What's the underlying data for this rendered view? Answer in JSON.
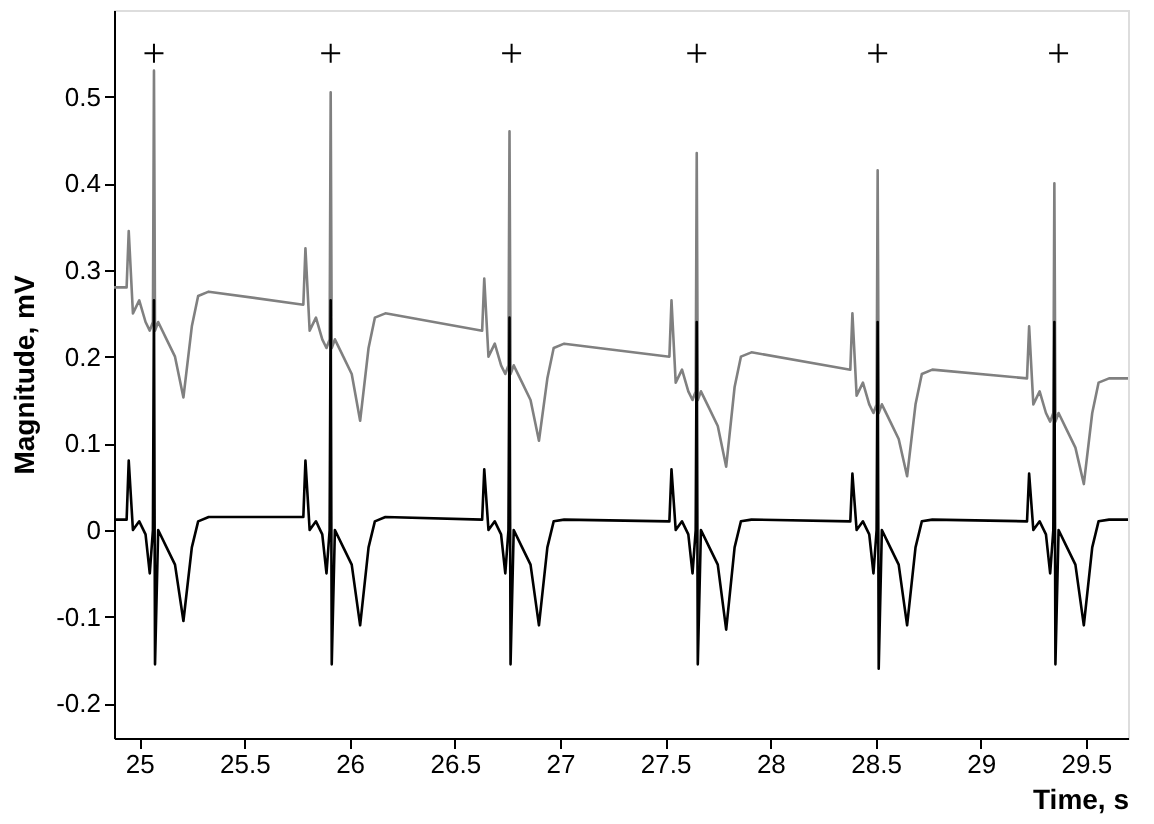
{
  "chart_data": {
    "type": "line",
    "xlabel": "Time, s",
    "ylabel": "Magnitude, mV",
    "xlim": [
      24.88,
      29.7
    ],
    "xticks": [
      25,
      25.5,
      26,
      26.5,
      27,
      27.5,
      28,
      28.5,
      29,
      29.5
    ],
    "ylim": [
      -0.24,
      0.6
    ],
    "yticks": [
      -0.2,
      -0.1,
      0,
      0.1,
      0.2,
      0.3,
      0.4,
      0.5
    ],
    "grid": false,
    "line_style": "solid",
    "series": [
      {
        "color": "#808080",
        "marker": "none",
        "x": [
          24.88,
          24.94,
          24.95,
          24.97,
          25.0,
          25.03,
          25.05,
          25.065,
          25.07,
          25.075,
          25.09,
          25.13,
          25.17,
          25.21,
          25.25,
          25.28,
          25.33,
          25.78,
          25.79,
          25.81,
          25.84,
          25.87,
          25.89,
          25.905,
          25.91,
          25.915,
          25.93,
          25.97,
          26.01,
          26.05,
          26.09,
          26.12,
          26.17,
          26.63,
          26.64,
          26.66,
          26.69,
          26.72,
          26.74,
          26.755,
          26.76,
          26.765,
          26.78,
          26.82,
          26.86,
          26.9,
          26.94,
          26.97,
          27.02,
          27.52,
          27.53,
          27.55,
          27.58,
          27.61,
          27.63,
          27.645,
          27.65,
          27.655,
          27.67,
          27.71,
          27.75,
          27.79,
          27.83,
          27.86,
          27.91,
          28.38,
          28.39,
          28.41,
          28.44,
          28.47,
          28.49,
          28.505,
          28.51,
          28.515,
          28.53,
          28.57,
          28.61,
          28.65,
          28.69,
          28.72,
          28.77,
          29.22,
          29.23,
          29.25,
          29.28,
          29.31,
          29.33,
          29.345,
          29.35,
          29.355,
          29.37,
          29.41,
          29.45,
          29.49,
          29.53,
          29.56,
          29.61,
          29.7
        ],
        "values": [
          0.28,
          0.28,
          0.345,
          0.25,
          0.265,
          0.24,
          0.23,
          0.24,
          0.53,
          0.23,
          0.24,
          0.22,
          0.2,
          0.153,
          0.235,
          0.27,
          0.275,
          0.26,
          0.325,
          0.23,
          0.245,
          0.22,
          0.21,
          0.22,
          0.505,
          0.21,
          0.22,
          0.2,
          0.18,
          0.126,
          0.21,
          0.245,
          0.25,
          0.23,
          0.29,
          0.2,
          0.215,
          0.19,
          0.18,
          0.19,
          0.46,
          0.18,
          0.19,
          0.17,
          0.15,
          0.103,
          0.175,
          0.21,
          0.215,
          0.2,
          0.265,
          0.17,
          0.185,
          0.16,
          0.15,
          0.16,
          0.435,
          0.15,
          0.16,
          0.14,
          0.12,
          0.073,
          0.165,
          0.2,
          0.205,
          0.185,
          0.25,
          0.155,
          0.17,
          0.145,
          0.135,
          0.145,
          0.415,
          0.135,
          0.145,
          0.125,
          0.105,
          0.062,
          0.145,
          0.18,
          0.185,
          0.175,
          0.235,
          0.145,
          0.16,
          0.135,
          0.125,
          0.135,
          0.4,
          0.125,
          0.135,
          0.115,
          0.095,
          0.053,
          0.135,
          0.17,
          0.175,
          0.175
        ]
      },
      {
        "color": "#000000",
        "marker": "none",
        "x": [
          24.88,
          24.94,
          24.95,
          24.97,
          25.0,
          25.03,
          25.05,
          25.065,
          25.07,
          25.075,
          25.09,
          25.13,
          25.17,
          25.21,
          25.25,
          25.28,
          25.33,
          25.78,
          25.79,
          25.81,
          25.84,
          25.87,
          25.89,
          25.905,
          25.91,
          25.915,
          25.93,
          25.97,
          26.01,
          26.05,
          26.09,
          26.12,
          26.17,
          26.63,
          26.64,
          26.66,
          26.69,
          26.72,
          26.74,
          26.755,
          26.76,
          26.765,
          26.78,
          26.82,
          26.86,
          26.9,
          26.94,
          26.97,
          27.02,
          27.52,
          27.53,
          27.55,
          27.58,
          27.61,
          27.63,
          27.645,
          27.65,
          27.655,
          27.67,
          27.71,
          27.75,
          27.79,
          27.83,
          27.86,
          27.91,
          28.38,
          28.39,
          28.41,
          28.44,
          28.47,
          28.49,
          28.505,
          28.51,
          28.515,
          28.53,
          28.57,
          28.61,
          28.65,
          28.69,
          28.72,
          28.77,
          29.22,
          29.23,
          29.25,
          29.28,
          29.31,
          29.33,
          29.345,
          29.35,
          29.355,
          29.37,
          29.41,
          29.45,
          29.49,
          29.53,
          29.56,
          29.61,
          29.7
        ],
        "values": [
          0.012,
          0.012,
          0.08,
          0.0,
          0.01,
          -0.005,
          -0.05,
          0.0,
          0.265,
          -0.155,
          0.0,
          -0.02,
          -0.04,
          -0.105,
          -0.02,
          0.01,
          0.015,
          0.015,
          0.08,
          0.0,
          0.01,
          -0.005,
          -0.05,
          0.0,
          0.265,
          -0.155,
          0.0,
          -0.02,
          -0.04,
          -0.11,
          -0.02,
          0.01,
          0.015,
          0.012,
          0.07,
          0.0,
          0.01,
          -0.005,
          -0.05,
          0.0,
          0.245,
          -0.155,
          0.0,
          -0.02,
          -0.04,
          -0.11,
          -0.02,
          0.01,
          0.012,
          0.01,
          0.07,
          0.0,
          0.01,
          -0.005,
          -0.05,
          0.0,
          0.24,
          -0.155,
          0.0,
          -0.02,
          -0.04,
          -0.115,
          -0.02,
          0.01,
          0.012,
          0.01,
          0.065,
          0.0,
          0.01,
          -0.005,
          -0.05,
          0.0,
          0.24,
          -0.16,
          0.0,
          -0.02,
          -0.04,
          -0.11,
          -0.02,
          0.01,
          0.012,
          0.01,
          0.065,
          0.0,
          0.01,
          -0.005,
          -0.05,
          0.0,
          0.24,
          -0.155,
          0.0,
          -0.02,
          -0.04,
          -0.11,
          -0.02,
          0.01,
          0.012,
          0.012
        ]
      },
      {
        "type": "scatter",
        "color": "#000000",
        "marker": "cross",
        "x": [
          25.07,
          25.91,
          26.77,
          27.65,
          28.51,
          29.37
        ],
        "values": [
          0.55,
          0.55,
          0.55,
          0.55,
          0.55,
          0.55
        ]
      }
    ]
  }
}
